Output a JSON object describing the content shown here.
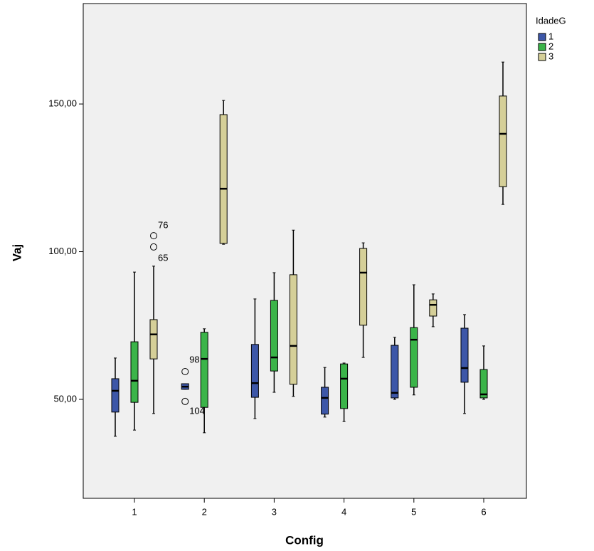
{
  "chart_data": {
    "type": "box",
    "x_label": "Config",
    "y_label": "Vaj",
    "legend_title": "IdadeG",
    "legend_position": "right",
    "categories": [
      "1",
      "2",
      "3",
      "4",
      "5",
      "6"
    ],
    "ylim": [
      16.5,
      184
    ],
    "yticks": [
      {
        "value": 50,
        "label": "50,00"
      },
      {
        "value": 100,
        "label": "100,00"
      },
      {
        "value": 150,
        "label": "150,00"
      }
    ],
    "series": [
      {
        "name": "1",
        "color": "#3d57a8",
        "min": [
          37.5,
          53.4,
          43.5,
          44,
          50,
          45.2
        ],
        "q1": [
          45.7,
          53.4,
          50.7,
          45,
          50.5,
          55.8
        ],
        "median": [
          52.9,
          54.3,
          55.5,
          50.5,
          52.2,
          60.6
        ],
        "q3": [
          57,
          55.3,
          68.6,
          54.1,
          68.3,
          74.1
        ],
        "max": [
          64,
          55.3,
          84,
          60.8,
          71,
          78.7
        ],
        "outliers": [
          [],
          [
            59.4,
            49.3
          ],
          [],
          [],
          [],
          []
        ],
        "outlier_labels": [
          [],
          [
            "98",
            "104"
          ],
          [],
          [],
          [],
          []
        ]
      },
      {
        "name": "2",
        "color": "#3bb449",
        "min": [
          39.6,
          38.7,
          52.4,
          42.5,
          51.5,
          50
        ],
        "q1": [
          49,
          47.3,
          59.6,
          46.9,
          54.1,
          50.5
        ],
        "median": [
          56.3,
          63.7,
          64.2,
          57,
          70.2,
          51.7
        ],
        "q3": [
          69.5,
          72.7,
          83.5,
          62,
          74.3,
          60.1
        ],
        "max": [
          93.1,
          73.9,
          92.9,
          62.3,
          88.8,
          68.1
        ],
        "outliers": [
          [],
          [],
          [],
          [],
          [],
          []
        ],
        "outlier_labels": [
          [],
          [],
          [],
          [],
          [],
          []
        ]
      },
      {
        "name": "3",
        "color": "#d5cf98",
        "min": [
          45.2,
          102.5,
          51,
          64.2,
          74.6,
          116
        ],
        "q1": [
          63.7,
          102.8,
          55.1,
          75.1,
          78.2,
          122
        ],
        "median": [
          72,
          121.3,
          68.1,
          92.9,
          82,
          139.9
        ],
        "q3": [
          77,
          146.4,
          92.2,
          101.1,
          83.7,
          152.7
        ],
        "max": [
          95.1,
          151.2,
          107.3,
          103,
          85.7,
          164.2
        ],
        "outliers": [
          [
            105.4,
            101.6
          ],
          [],
          [],
          [],
          [],
          []
        ],
        "outlier_labels": [
          [
            "76",
            "65"
          ],
          [],
          [],
          [],
          [],
          []
        ]
      }
    ]
  }
}
